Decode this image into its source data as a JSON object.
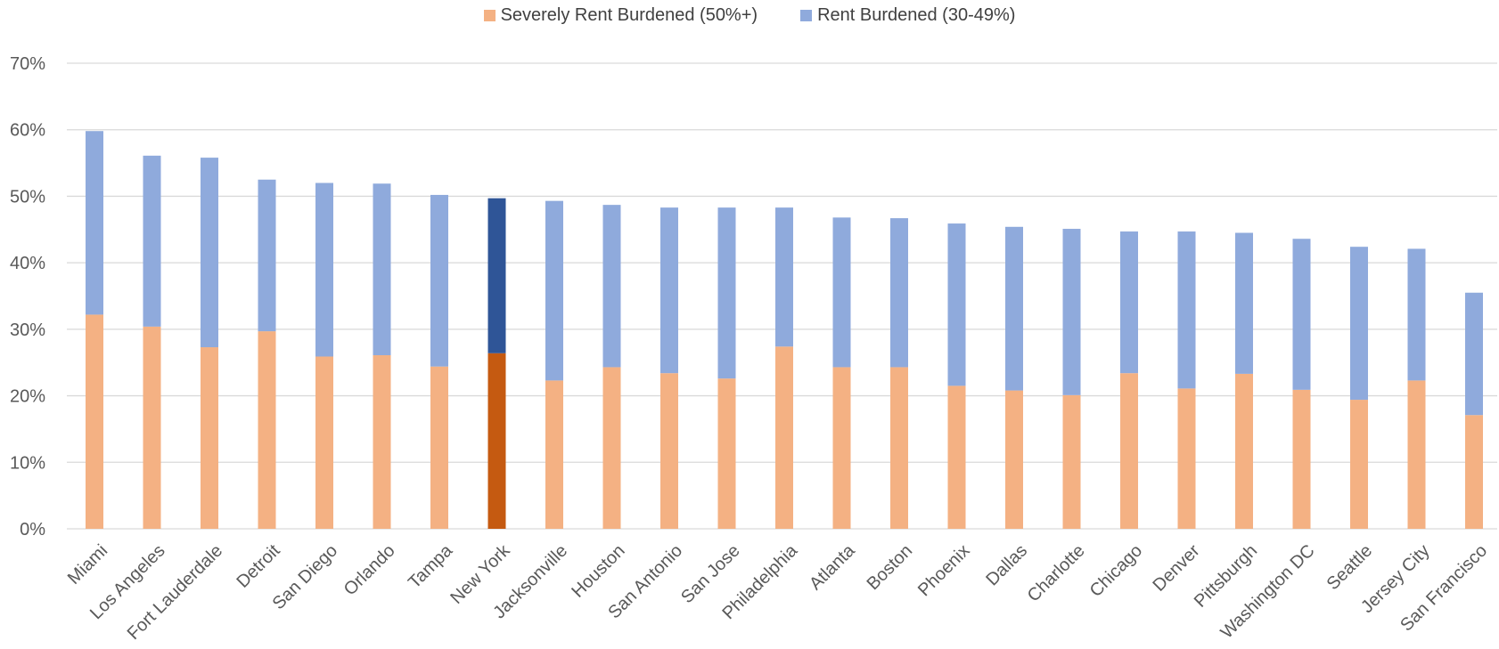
{
  "chart_data": {
    "type": "bar",
    "stacked": true,
    "categories": [
      "Miami",
      "Los Angeles",
      "Fort Lauderdale",
      "Detroit",
      "San Diego",
      "Orlando",
      "Tampa",
      "New York",
      "Jacksonville",
      "Houston",
      "San Antonio",
      "San Jose",
      "Philadelphia",
      "Atlanta",
      "Boston",
      "Phoenix",
      "Dallas",
      "Charlotte",
      "Chicago",
      "Denver",
      "Pittsburgh",
      "Washington DC",
      "Seattle",
      "Jersey City",
      "San Francisco"
    ],
    "series": [
      {
        "name": "Severely Rent Burdened (50%+)",
        "color": "#F4B183",
        "highlight_color": "#C55A11",
        "values": [
          32.2,
          30.4,
          27.3,
          29.7,
          25.9,
          26.1,
          24.4,
          26.4,
          22.3,
          24.3,
          23.4,
          22.6,
          27.4,
          24.3,
          24.3,
          21.5,
          20.8,
          20.1,
          23.4,
          21.1,
          23.3,
          20.9,
          19.4,
          22.3,
          17.1
        ]
      },
      {
        "name": "Rent Burdened (30-49%)",
        "color": "#8FAADC",
        "highlight_color": "#2F5597",
        "values": [
          27.6,
          25.7,
          28.5,
          22.8,
          26.1,
          25.8,
          25.8,
          23.3,
          27.0,
          24.4,
          24.9,
          25.7,
          20.9,
          22.5,
          22.4,
          24.4,
          24.6,
          25.0,
          21.3,
          23.6,
          21.2,
          22.7,
          23.0,
          19.8,
          18.4
        ]
      }
    ],
    "highlight_category": "New York",
    "ylim": [
      0,
      70
    ],
    "yticks": [
      0,
      10,
      20,
      30,
      40,
      50,
      60,
      70
    ],
    "ytick_labels": [
      "0%",
      "10%",
      "20%",
      "30%",
      "40%",
      "50%",
      "60%",
      "70%"
    ],
    "grid": true,
    "gridline_color": "#D9D9D9",
    "legend_position": "top-center",
    "title": "",
    "xlabel": "",
    "ylabel": ""
  }
}
